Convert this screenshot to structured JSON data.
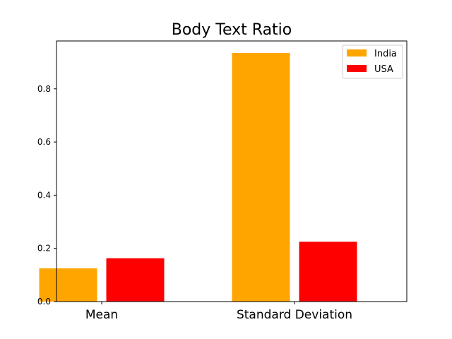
{
  "chart_data": {
    "type": "bar",
    "title": "Body Text Ratio",
    "xlabel": "",
    "ylabel": "",
    "categories": [
      "Mean",
      "Standard Deviation"
    ],
    "series": [
      {
        "name": "India",
        "color": "#ffa500",
        "values": [
          0.125,
          0.935
        ]
      },
      {
        "name": "USA",
        "color": "#ff0000",
        "values": [
          0.163,
          0.225
        ]
      }
    ],
    "ylim": [
      0,
      0.98
    ],
    "yticks": [
      0.0,
      0.2,
      0.4,
      0.6,
      0.8
    ],
    "ytick_labels": [
      "0.0",
      "0.2",
      "0.4",
      "0.6",
      "0.8"
    ],
    "grid": false,
    "legend_position": "top-right"
  }
}
